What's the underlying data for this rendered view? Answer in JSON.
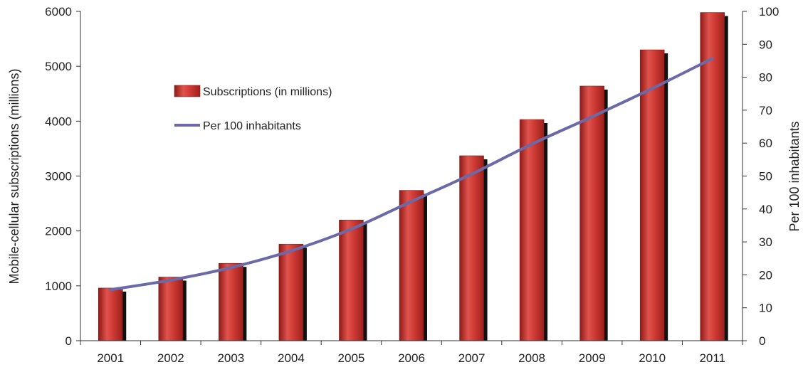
{
  "chart_data": {
    "type": "bar",
    "categories": [
      "2001",
      "2002",
      "2003",
      "2004",
      "2005",
      "2006",
      "2007",
      "2008",
      "2009",
      "2010",
      "2011"
    ],
    "series": [
      {
        "name": "Subscriptions (in millions)",
        "type": "bar",
        "axis": "left",
        "color": "#c0302b",
        "values": [
          960,
          1160,
          1410,
          1760,
          2200,
          2740,
          3370,
          4030,
          4640,
          5300,
          5980
        ]
      },
      {
        "name": "Per 100 inhabitants",
        "type": "line",
        "axis": "right",
        "color": "#6b6aa8",
        "values": [
          15.5,
          18.4,
          22.2,
          27.3,
          33.9,
          42.3,
          50.6,
          59.7,
          68.0,
          76.6,
          85.7
        ]
      }
    ],
    "ylabel": "Mobile-cellular subscriptions  (millions)",
    "y2label": "Per 100 inhabitants",
    "xlabel": "",
    "ylim": [
      0,
      6000
    ],
    "y2lim": [
      0,
      100
    ],
    "yticks": [
      "0",
      "1000",
      "2000",
      "3000",
      "4000",
      "5000",
      "6000"
    ],
    "y2ticks": [
      "0",
      "10",
      "20",
      "30",
      "40",
      "50",
      "60",
      "70",
      "80",
      "90",
      "100"
    ],
    "grid": false,
    "legend_position": "top-left inside"
  }
}
